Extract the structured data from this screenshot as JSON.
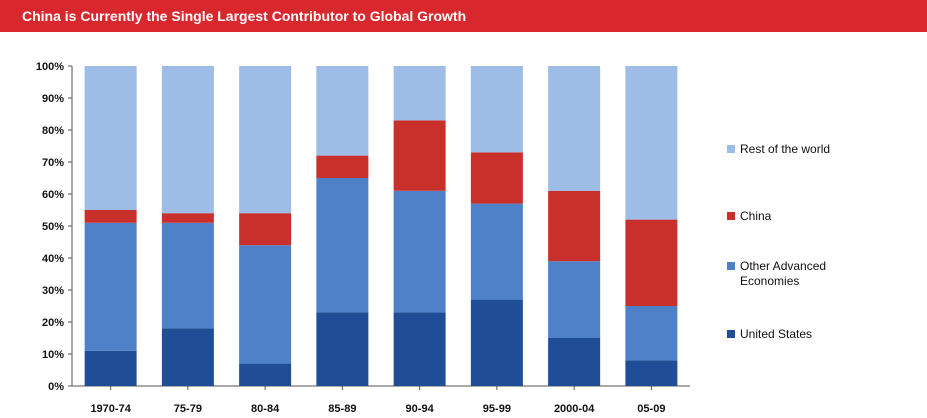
{
  "chart_data": {
    "type": "bar",
    "stacked": true,
    "title": "China is Currently the Single Largest Contributor to Global Growth",
    "categories": [
      "1970-74",
      "75-79",
      "80-84",
      "85-89",
      "90-94",
      "95-99",
      "2000-04",
      "05-09"
    ],
    "yticks": [
      "0%",
      "10%",
      "20%",
      "30%",
      "40%",
      "50%",
      "60%",
      "70%",
      "80%",
      "90%",
      "100%"
    ],
    "ylim": [
      0,
      100
    ],
    "series": [
      {
        "name": "United States",
        "color": "#1f4e96",
        "values": [
          11,
          18,
          7,
          23,
          23,
          27,
          15,
          8
        ]
      },
      {
        "name": "Other Advanced Economies",
        "color": "#4f81c9",
        "values": [
          40,
          33,
          37,
          42,
          38,
          30,
          24,
          17
        ]
      },
      {
        "name": "China",
        "color": "#c9302c",
        "values": [
          4,
          3,
          10,
          7,
          22,
          16,
          22,
          27
        ]
      },
      {
        "name": "Rest of the world",
        "color": "#9dbce6",
        "values": [
          45,
          46,
          46,
          28,
          17,
          27,
          39,
          48
        ]
      }
    ],
    "legend_order": [
      "Rest of the world",
      "China",
      "Other Advanced Economies",
      "United States"
    ],
    "legend_position": "right",
    "grid": false
  }
}
